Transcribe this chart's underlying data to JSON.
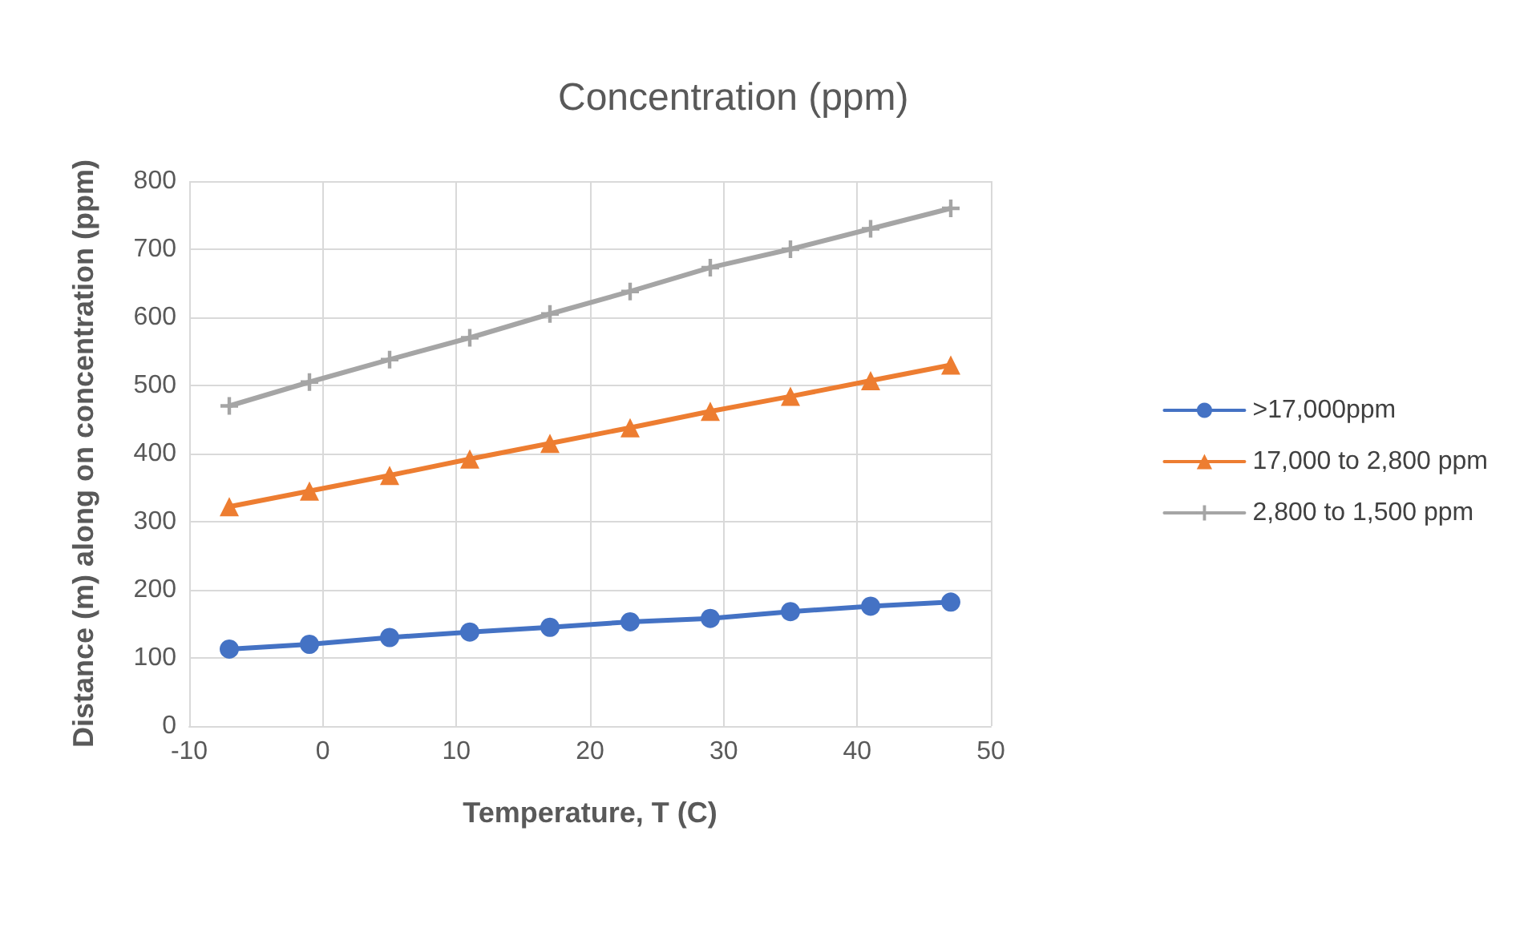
{
  "chart_data": {
    "type": "line",
    "title": "Concentration (ppm)",
    "xlabel": "Temperature, T (C)",
    "ylabel": "Distance (m) along on concentration (ppm)",
    "x": [
      -7,
      -1,
      5,
      11,
      17,
      23,
      29,
      35,
      41,
      47
    ],
    "series": [
      {
        "name": ">17,000ppm",
        "color": "#4472c4",
        "marker": "circle",
        "values": [
          113,
          120,
          130,
          138,
          145,
          153,
          158,
          168,
          176,
          182
        ]
      },
      {
        "name": "17,000 to 2,800 ppm",
        "color": "#ed7d31",
        "marker": "triangle",
        "values": [
          322,
          345,
          368,
          392,
          415,
          438,
          462,
          484,
          507,
          530
        ]
      },
      {
        "name": "2,800 to 1,500 ppm",
        "color": "#a5a5a5",
        "marker": "cross",
        "values": [
          470,
          505,
          538,
          570,
          605,
          638,
          673,
          700,
          730,
          760
        ]
      }
    ],
    "xlim": [
      -10,
      50
    ],
    "xticks": [
      -10,
      0,
      10,
      20,
      30,
      40,
      50
    ],
    "ylim": [
      0,
      800
    ],
    "yticks": [
      0,
      100,
      200,
      300,
      400,
      500,
      600,
      700,
      800
    ],
    "grid": true,
    "legend": "right",
    "line_style": "solid"
  }
}
